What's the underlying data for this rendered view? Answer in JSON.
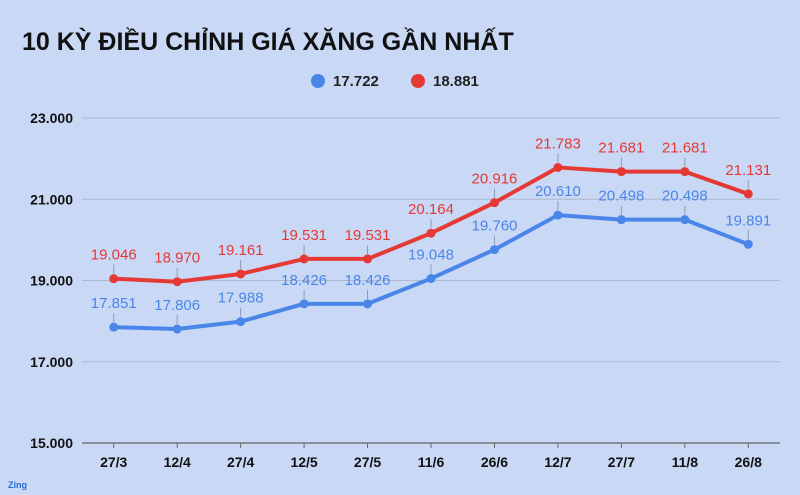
{
  "chart_data": {
    "type": "line",
    "title": "10 KỲ ĐIỀU CHỈNH GIÁ XĂNG GẦN NHẤT",
    "categories": [
      "27/3",
      "12/4",
      "27/4",
      "12/5",
      "27/5",
      "11/6",
      "26/6",
      "12/7",
      "27/7",
      "11/8",
      "26/8"
    ],
    "series": [
      {
        "name": "17.722",
        "color": "#4a86e8",
        "values": [
          17851,
          17806,
          17988,
          18426,
          18426,
          19048,
          19760,
          20610,
          20498,
          20498,
          19891
        ],
        "labels": [
          "17.851",
          "17.806",
          "17.988",
          "18.426",
          "18.426",
          "19.048",
          "19.760",
          "20.610",
          "20.498",
          "20.498",
          "19.891"
        ]
      },
      {
        "name": "18.881",
        "color": "#e53935",
        "values": [
          19046,
          18970,
          19161,
          19531,
          19531,
          20164,
          20916,
          21783,
          21681,
          21681,
          21131
        ],
        "labels": [
          "19.046",
          "18.970",
          "19.161",
          "19.531",
          "19.531",
          "20.164",
          "20.916",
          "21.783",
          "21.681",
          "21.681",
          "21.131"
        ]
      }
    ],
    "yticks": [
      15000,
      17000,
      19000,
      21000,
      23000
    ],
    "ytick_labels": [
      "15.000",
      "17.000",
      "19.000",
      "21.000",
      "23.000"
    ],
    "ylim": [
      15000,
      23000
    ],
    "grid": true,
    "legend_position": "top-center",
    "xlabel": "",
    "ylabel": ""
  },
  "watermark": "Zing"
}
